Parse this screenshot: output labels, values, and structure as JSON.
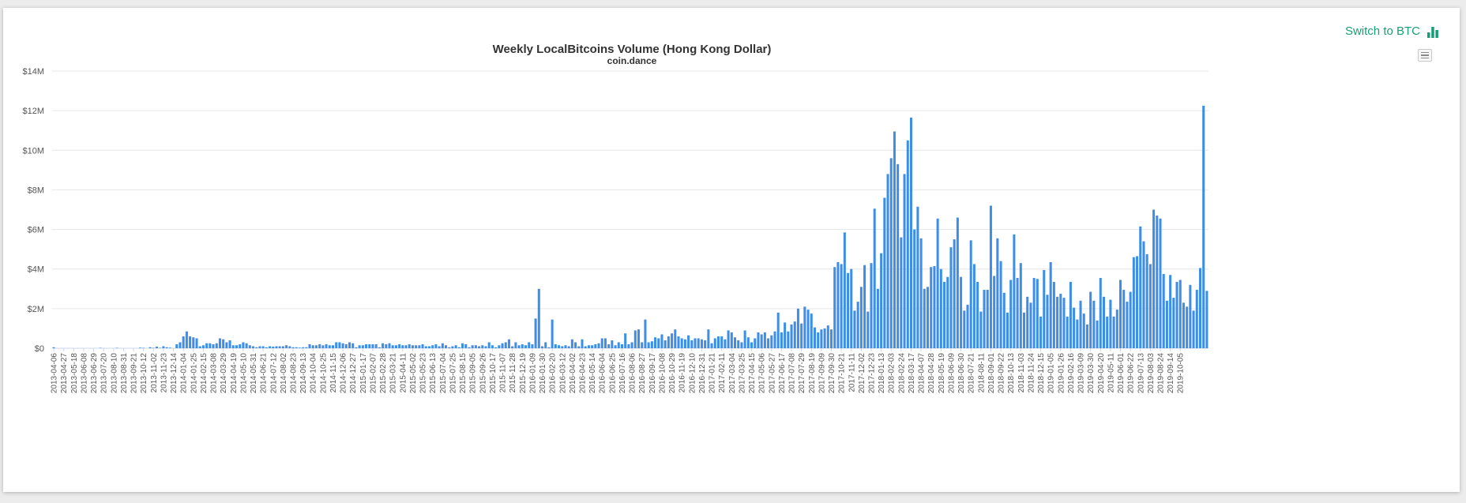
{
  "switch_button": {
    "label": "Switch to BTC",
    "icon": "bar-chart-icon",
    "color": "#169e74"
  },
  "menu_button": {
    "icon": "hamburger-menu-icon"
  },
  "chart_data": {
    "type": "bar",
    "title": "Weekly LocalBitcoins Volume (Hong Kong Dollar)",
    "subtitle": "coin.dance",
    "xlabel": "",
    "ylabel": "",
    "bar_color": "#3e8ee8",
    "grid": true,
    "ylim": [
      0,
      14000000
    ],
    "y_ticks": [
      {
        "value": 0,
        "label": "$0"
      },
      {
        "value": 2000000,
        "label": "$2M"
      },
      {
        "value": 4000000,
        "label": "$4M"
      },
      {
        "value": 6000000,
        "label": "$6M"
      },
      {
        "value": 8000000,
        "label": "$8M"
      },
      {
        "value": 10000000,
        "label": "$10M"
      },
      {
        "value": 12000000,
        "label": "$12M"
      },
      {
        "value": 14000000,
        "label": "$14M"
      }
    ],
    "categories_start": "2013-04-06",
    "categories_interval_days": 7,
    "x_tick_labels": [
      "2013-04-06",
      "2013-04-27",
      "2013-05-18",
      "2013-06-08",
      "2013-06-29",
      "2013-07-20",
      "2013-08-10",
      "2013-08-31",
      "2013-09-21",
      "2013-10-12",
      "2013-11-02",
      "2013-11-23",
      "2013-12-14",
      "2014-01-04",
      "2014-01-25",
      "2014-02-15",
      "2014-03-08",
      "2014-03-29",
      "2014-04-19",
      "2014-05-10",
      "2014-05-31",
      "2014-06-21",
      "2014-07-12",
      "2014-08-02",
      "2014-08-23",
      "2014-09-13",
      "2014-10-04",
      "2014-10-25",
      "2014-11-15",
      "2014-12-06",
      "2014-12-27",
      "2015-01-17",
      "2015-02-07",
      "2015-02-28",
      "2015-03-21",
      "2015-04-11",
      "2015-05-02",
      "2015-05-23",
      "2015-06-13",
      "2015-07-04",
      "2015-07-25",
      "2015-08-15",
      "2015-09-05",
      "2015-09-26",
      "2015-10-17",
      "2015-11-07",
      "2015-11-28",
      "2015-12-19",
      "2016-01-09",
      "2016-01-30",
      "2016-02-20",
      "2016-03-12",
      "2016-04-02",
      "2016-04-23",
      "2016-05-14",
      "2016-06-04",
      "2016-06-25",
      "2016-07-16",
      "2016-08-06",
      "2016-08-27",
      "2016-09-17",
      "2016-10-08",
      "2016-10-29",
      "2016-11-19",
      "2016-12-10",
      "2016-12-31",
      "2017-01-21",
      "2017-02-11",
      "2017-03-04",
      "2017-03-25",
      "2017-04-15",
      "2017-05-06",
      "2017-05-27",
      "2017-06-17",
      "2017-07-08",
      "2017-07-29",
      "2017-08-19",
      "2017-09-09",
      "2017-09-30",
      "2017-10-21",
      "2017-11-11",
      "2017-12-02",
      "2017-12-23",
      "2018-01-13",
      "2018-02-03",
      "2018-02-24",
      "2018-03-17",
      "2018-04-07",
      "2018-04-28",
      "2018-05-19",
      "2018-06-09",
      "2018-06-30",
      "2018-07-21",
      "2018-08-11",
      "2018-09-01",
      "2018-09-22",
      "2018-10-13",
      "2018-11-03",
      "2018-11-24",
      "2018-12-15",
      "2019-01-05",
      "2019-01-26",
      "2019-02-16",
      "2019-03-09",
      "2019-03-30",
      "2019-04-20",
      "2019-05-11",
      "2019-06-01",
      "2019-06-22",
      "2019-07-13",
      "2019-08-03",
      "2019-08-24",
      "2019-09-14",
      "2019-10-05"
    ],
    "series": [
      {
        "values": [
          0.05,
          0,
          0,
          0,
          0,
          0,
          0,
          0,
          0,
          0,
          0,
          0,
          0,
          0,
          0.02,
          0,
          0,
          0,
          0,
          0.02,
          0,
          0,
          0,
          0,
          0,
          0,
          0.03,
          0.02,
          0,
          0.05,
          0.02,
          0.08,
          0.02,
          0.1,
          0.05,
          0.03,
          0,
          0.2,
          0.3,
          0.6,
          0.85,
          0.6,
          0.55,
          0.5,
          0.1,
          0.15,
          0.25,
          0.25,
          0.2,
          0.25,
          0.5,
          0.45,
          0.3,
          0.4,
          0.15,
          0.15,
          0.2,
          0.3,
          0.25,
          0.15,
          0.1,
          0.05,
          0.1,
          0.1,
          0.05,
          0.1,
          0.08,
          0.1,
          0.1,
          0.1,
          0.15,
          0.1,
          0.05,
          0.05,
          0.03,
          0.05,
          0.05,
          0.2,
          0.15,
          0.15,
          0.2,
          0.15,
          0.2,
          0.15,
          0.15,
          0.3,
          0.3,
          0.25,
          0.2,
          0.3,
          0.25,
          0.05,
          0.15,
          0.15,
          0.2,
          0.2,
          0.2,
          0.2,
          0.05,
          0.25,
          0.2,
          0.25,
          0.15,
          0.15,
          0.2,
          0.15,
          0.15,
          0.2,
          0.15,
          0.15,
          0.15,
          0.2,
          0.1,
          0.1,
          0.15,
          0.2,
          0.1,
          0.25,
          0.15,
          0.05,
          0.1,
          0.15,
          0.05,
          0.25,
          0.2,
          0.05,
          0.15,
          0.15,
          0.1,
          0.15,
          0.1,
          0.3,
          0.15,
          0.05,
          0.15,
          0.25,
          0.3,
          0.45,
          0.1,
          0.3,
          0.15,
          0.2,
          0.15,
          0.3,
          0.2,
          1.5,
          3.0,
          0.1,
          0.3,
          0.05,
          1.45,
          0.2,
          0.15,
          0.1,
          0.15,
          0.1,
          0.45,
          0.3,
          0.1,
          0.45,
          0.1,
          0.15,
          0.15,
          0.2,
          0.25,
          0.5,
          0.5,
          0.2,
          0.4,
          0.15,
          0.3,
          0.2,
          0.75,
          0.2,
          0.3,
          0.9,
          0.95,
          0.3,
          1.45,
          0.3,
          0.35,
          0.55,
          0.5,
          0.7,
          0.4,
          0.6,
          0.75,
          0.95,
          0.6,
          0.5,
          0.45,
          0.65,
          0.4,
          0.5,
          0.5,
          0.45,
          0.4,
          0.95,
          0.25,
          0.5,
          0.6,
          0.6,
          0.45,
          0.9,
          0.8,
          0.55,
          0.4,
          0.3,
          0.9,
          0.55,
          0.3,
          0.5,
          0.8,
          0.7,
          0.8,
          0.5,
          0.65,
          0.85,
          1.8,
          0.8,
          1.3,
          0.85,
          1.2,
          1.35,
          2.0,
          1.25,
          2.1,
          1.95,
          1.75,
          1.05,
          0.8,
          0.95,
          1.0,
          1.15,
          0.95,
          4.1,
          4.35,
          4.25,
          5.85,
          3.8,
          4.0,
          1.9,
          2.35,
          3.1,
          4.2,
          1.85,
          4.3,
          7.05,
          3.0,
          4.8,
          7.6,
          8.8,
          9.6,
          10.95,
          9.3,
          5.6,
          8.8,
          10.5,
          11.65,
          6.0,
          7.15,
          5.55,
          3.0,
          3.1,
          4.1,
          4.15,
          6.55,
          4.0,
          3.35,
          3.6,
          5.1,
          5.5,
          6.6,
          3.6,
          1.9,
          2.2,
          5.45,
          4.25,
          3.35,
          1.85,
          2.95,
          2.95,
          7.2,
          3.65,
          5.55,
          4.4,
          2.8,
          1.8,
          3.45,
          5.75,
          3.55,
          4.3,
          1.8,
          2.6,
          2.3,
          3.55,
          3.5,
          1.6,
          3.95,
          2.7,
          4.35,
          3.35,
          2.6,
          2.75,
          2.55,
          1.6,
          3.35,
          2.05,
          1.45,
          2.4,
          1.75,
          1.2,
          2.85,
          2.4,
          1.4,
          3.55,
          2.6,
          1.6,
          2.45,
          1.6,
          1.95,
          3.45,
          2.95,
          2.35,
          2.85,
          4.6,
          4.65,
          6.15,
          5.4,
          4.75,
          4.25,
          7.0,
          6.7,
          6.55,
          3.75,
          2.4,
          3.7,
          2.55,
          3.35,
          3.45,
          2.3,
          2.1,
          3.2,
          1.9,
          2.95,
          4.05,
          12.25,
          2.9
        ]
      }
    ],
    "values_unit_note": "values in $M"
  }
}
